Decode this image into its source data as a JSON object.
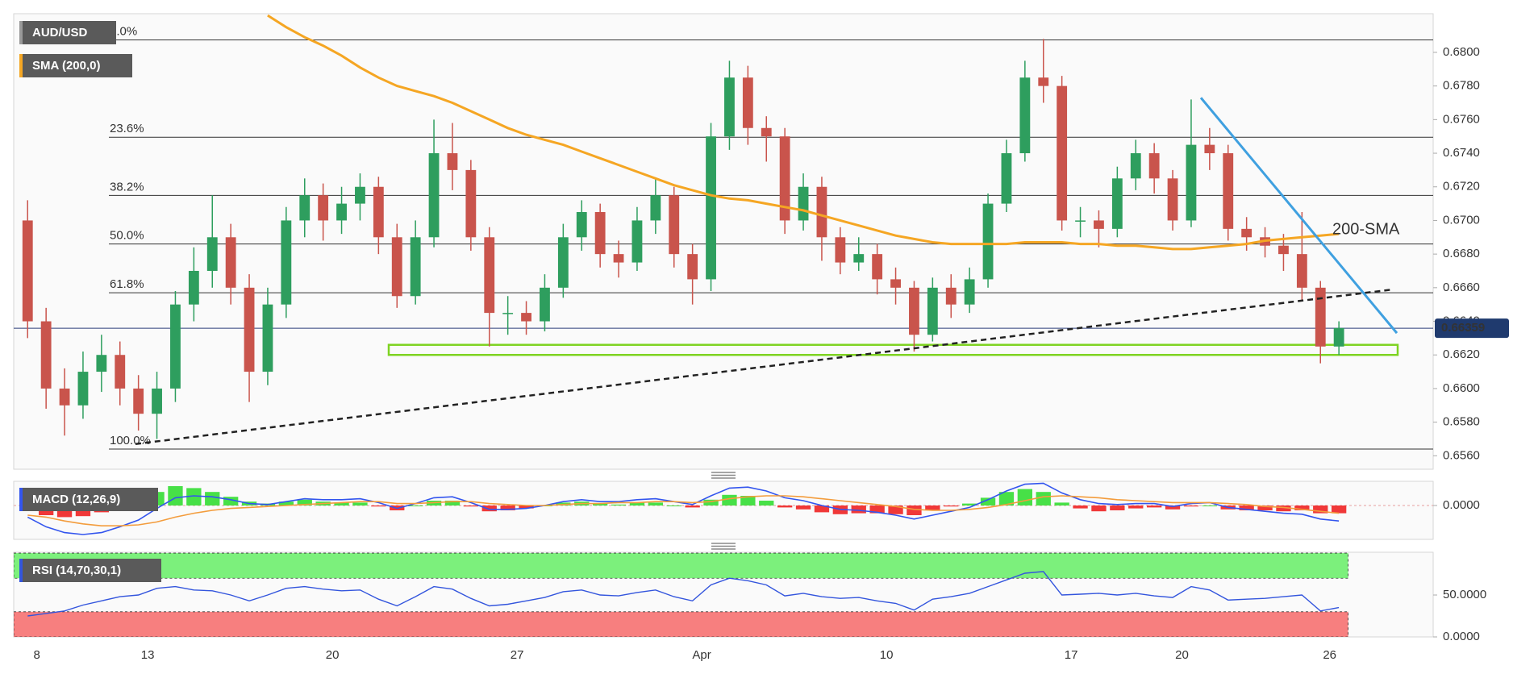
{
  "chart_data": [
    {
      "type": "candlestick",
      "title": "AUD/USD",
      "categories": [
        null,
        "8",
        null,
        null,
        null,
        null,
        null,
        "13",
        null,
        null,
        null,
        null,
        null,
        null,
        null,
        null,
        null,
        "20",
        null,
        null,
        null,
        null,
        null,
        null,
        null,
        null,
        null,
        "27",
        null,
        null,
        null,
        null,
        null,
        null,
        null,
        null,
        null,
        "Apr",
        null,
        null,
        null,
        null,
        null,
        null,
        null,
        null,
        null,
        "10",
        null,
        null,
        null,
        null,
        null,
        null,
        null,
        null,
        null,
        "17",
        null,
        null,
        null,
        null,
        null,
        "20",
        null,
        null,
        null,
        null,
        null,
        null,
        null,
        "26"
      ],
      "open": [
        0.67,
        0.664,
        0.66,
        0.659,
        0.661,
        0.662,
        0.66,
        0.6585,
        0.66,
        0.665,
        0.667,
        0.669,
        0.666,
        0.661,
        0.665,
        0.67,
        0.6715,
        0.67,
        0.671,
        0.672,
        0.669,
        0.6655,
        0.669,
        0.674,
        0.673,
        0.669,
        0.6645,
        0.6645,
        0.664,
        0.666,
        0.669,
        0.6705,
        0.668,
        0.6675,
        0.67,
        0.6715,
        0.668,
        0.6665,
        0.675,
        0.6785,
        0.6755,
        0.675,
        0.67,
        0.672,
        0.669,
        0.6675,
        0.668,
        0.6665,
        0.666,
        0.6632,
        0.666,
        0.665,
        0.6665,
        0.671,
        0.674,
        0.6785,
        0.678,
        0.67,
        0.67,
        0.6695,
        0.6725,
        0.674,
        0.6725,
        0.67,
        0.6745,
        0.674,
        0.6695,
        0.669,
        0.6685,
        0.668,
        0.666,
        0.6625
      ],
      "high": [
        0.6712,
        0.6648,
        0.6612,
        0.6622,
        0.6632,
        0.6628,
        0.6608,
        0.661,
        0.6658,
        0.6684,
        0.6715,
        0.6698,
        0.6668,
        0.666,
        0.6708,
        0.6725,
        0.6722,
        0.672,
        0.6728,
        0.6726,
        0.6698,
        0.67,
        0.676,
        0.6758,
        0.6736,
        0.6696,
        0.6655,
        0.6652,
        0.6668,
        0.6698,
        0.6712,
        0.671,
        0.6688,
        0.6708,
        0.6725,
        0.672,
        0.6686,
        0.6758,
        0.6795,
        0.6792,
        0.6762,
        0.6755,
        0.6728,
        0.6726,
        0.6696,
        0.669,
        0.6686,
        0.6672,
        0.6664,
        0.6666,
        0.6668,
        0.6672,
        0.6716,
        0.6748,
        0.6795,
        0.6808,
        0.6786,
        0.6708,
        0.6706,
        0.6732,
        0.6748,
        0.6746,
        0.673,
        0.6772,
        0.6755,
        0.6745,
        0.6702,
        0.6696,
        0.6692,
        0.6705,
        0.6664,
        0.664
      ],
      "low": [
        0.663,
        0.6588,
        0.6572,
        0.6582,
        0.6598,
        0.659,
        0.6575,
        0.657,
        0.6592,
        0.664,
        0.666,
        0.665,
        0.6592,
        0.6602,
        0.6642,
        0.669,
        0.6688,
        0.6692,
        0.67,
        0.668,
        0.6648,
        0.665,
        0.6684,
        0.6718,
        0.6682,
        0.6625,
        0.6632,
        0.6632,
        0.6634,
        0.6654,
        0.6682,
        0.6672,
        0.6666,
        0.667,
        0.6692,
        0.6672,
        0.665,
        0.6658,
        0.6742,
        0.6745,
        0.6735,
        0.6692,
        0.6694,
        0.6676,
        0.6668,
        0.667,
        0.6656,
        0.665,
        0.6622,
        0.6628,
        0.6642,
        0.6645,
        0.666,
        0.6705,
        0.6735,
        0.677,
        0.6694,
        0.669,
        0.6684,
        0.669,
        0.6718,
        0.6716,
        0.6694,
        0.6696,
        0.673,
        0.6688,
        0.6682,
        0.6678,
        0.667,
        0.6652,
        0.6615,
        0.662
      ],
      "close": [
        0.664,
        0.66,
        0.659,
        0.661,
        0.662,
        0.66,
        0.6585,
        0.66,
        0.665,
        0.667,
        0.669,
        0.666,
        0.661,
        0.665,
        0.67,
        0.6715,
        0.67,
        0.671,
        0.672,
        0.669,
        0.6655,
        0.669,
        0.674,
        0.673,
        0.669,
        0.6645,
        0.6645,
        0.664,
        0.666,
        0.669,
        0.6705,
        0.668,
        0.6675,
        0.67,
        0.6715,
        0.668,
        0.6665,
        0.675,
        0.6785,
        0.6755,
        0.675,
        0.67,
        0.672,
        0.669,
        0.6675,
        0.668,
        0.6665,
        0.666,
        0.6632,
        0.666,
        0.665,
        0.6665,
        0.671,
        0.674,
        0.6785,
        0.678,
        0.67,
        0.67,
        0.6695,
        0.6725,
        0.674,
        0.6725,
        0.67,
        0.6745,
        0.674,
        0.6695,
        0.669,
        0.6685,
        0.668,
        0.666,
        0.6625,
        0.6636
      ],
      "up_color": "#2e9e5e",
      "down_color": "#c9544c",
      "series": [
        {
          "name": "SMA (200,0)",
          "color": "#f5a623",
          "values": [
            null,
            null,
            null,
            null,
            null,
            null,
            null,
            null,
            null,
            null,
            null,
            null,
            null,
            0.6822,
            0.6815,
            0.6809,
            0.6804,
            0.6798,
            0.6791,
            0.6785,
            0.678,
            0.6777,
            0.6774,
            0.677,
            0.6765,
            0.676,
            0.6755,
            0.6751,
            0.6748,
            0.6745,
            0.6741,
            0.6737,
            0.6733,
            0.6729,
            0.6725,
            0.6721,
            0.6718,
            0.6715,
            0.6713,
            0.6712,
            0.671,
            0.6708,
            0.6706,
            0.6703,
            0.67,
            0.6697,
            0.6694,
            0.6691,
            0.6689,
            0.6687,
            0.6686,
            0.6686,
            0.6686,
            0.6686,
            0.6687,
            0.6687,
            0.6687,
            0.6686,
            0.6686,
            0.6685,
            0.6685,
            0.6684,
            0.6683,
            0.6683,
            0.6684,
            0.6685,
            0.6686,
            0.6688,
            0.6689,
            0.669,
            0.6691,
            0.6692
          ]
        }
      ],
      "ylim": [
        0.6552,
        0.6823
      ],
      "yticks": [
        {
          "value": 0.656,
          "label": "0.6560"
        },
        {
          "value": 0.658,
          "label": "0.6580"
        },
        {
          "value": 0.66,
          "label": "0.6600"
        },
        {
          "value": 0.662,
          "label": "0.6620"
        },
        {
          "value": 0.664,
          "label": "0.6640"
        },
        {
          "value": 0.666,
          "label": "0.6660"
        },
        {
          "value": 0.668,
          "label": "0.6680"
        },
        {
          "value": 0.67,
          "label": "0.6700"
        },
        {
          "value": 0.672,
          "label": "0.6720"
        },
        {
          "value": 0.674,
          "label": "0.6740"
        },
        {
          "value": 0.676,
          "label": "0.6760"
        },
        {
          "value": 0.678,
          "label": "0.6780"
        },
        {
          "value": 0.68,
          "label": "0.6800"
        }
      ],
      "last_price": 0.66359,
      "fib_levels": [
        {
          "label": "0.0%",
          "price": 0.68074
        },
        {
          "label": "23.6%",
          "price": 0.67495
        },
        {
          "label": "38.2%",
          "price": 0.67149
        },
        {
          "label": "50.0%",
          "price": 0.6686
        },
        {
          "label": "61.8%",
          "price": 0.6657
        },
        {
          "label": "100.0%",
          "price": 0.6564
        }
      ],
      "support_zone": [
        0.662,
        0.6626
      ],
      "support_color": "#7ed321",
      "trendlines": [
        {
          "color": "#222222",
          "dashed": true,
          "from": 0.6567,
          "to": 0.6659
        },
        {
          "color": "#3fa0e0",
          "dashed": false,
          "from": 0.6773,
          "to": 0.6633
        }
      ],
      "annotation": {
        "text": "200-SMA",
        "color": "#f5a623"
      }
    },
    {
      "type": "macd",
      "title": "MACD (12,26,9)",
      "series": [
        {
          "color": "#3355ee",
          "values": [
            -0.0012,
            -0.0022,
            -0.0028,
            -0.003,
            -0.0028,
            -0.0022,
            -0.0015,
            -0.0003,
            0.0008,
            0.001,
            0.0009,
            0.0006,
            0.0002,
            0.0001,
            0.0004,
            0.0007,
            0.0006,
            0.0006,
            0.0007,
            0.0003,
            -0.0003,
            0.0002,
            0.0008,
            0.0009,
            0.0003,
            -0.0004,
            -0.0004,
            -0.0003,
            0.0,
            0.0004,
            0.0006,
            0.0004,
            0.0004,
            0.0006,
            0.0007,
            0.0004,
            0.0001,
            0.001,
            0.0018,
            0.0019,
            0.0015,
            0.0008,
            0.0005,
            0.0,
            -0.0004,
            -0.0005,
            -0.0007,
            -0.001,
            -0.0014,
            -0.001,
            -0.0006,
            -0.0002,
            0.0006,
            0.0015,
            0.0022,
            0.0023,
            0.0013,
            0.0006,
            0.0002,
            0.0001,
            0.0002,
            0.0002,
            -0.0001,
            0.0002,
            0.0003,
            -0.0002,
            -0.0004,
            -0.0006,
            -0.0008,
            -0.0009,
            -0.0014,
            -0.0016
          ]
        },
        {
          "color": "#f39c3c",
          "values": [
            -0.001,
            -0.0012,
            -0.0016,
            -0.0019,
            -0.0021,
            -0.0021,
            -0.002,
            -0.0017,
            -0.0012,
            -0.0008,
            -0.0005,
            -0.0003,
            -0.0002,
            -0.0001,
            0.0,
            0.0001,
            0.0002,
            0.0003,
            0.0004,
            0.0004,
            0.0002,
            0.0002,
            0.0003,
            0.0004,
            0.0004,
            0.0002,
            0.0001,
            0.0,
            0.0,
            0.0001,
            0.0002,
            0.0002,
            0.0003,
            0.0003,
            0.0004,
            0.0004,
            0.0003,
            0.0004,
            0.0007,
            0.0009,
            0.001,
            0.001,
            0.0009,
            0.0007,
            0.0005,
            0.0003,
            0.0001,
            -0.0001,
            -0.0004,
            -0.0005,
            -0.0005,
            -0.0004,
            -0.0002,
            0.0001,
            0.0005,
            0.0009,
            0.001,
            0.0009,
            0.0008,
            0.0006,
            0.0005,
            0.0004,
            0.0003,
            0.0003,
            0.0003,
            0.0002,
            0.0001,
            -0.0001,
            -0.0002,
            -0.0004,
            -0.0006,
            -0.0008
          ]
        }
      ],
      "histogram": [
        -0.0002,
        -0.001,
        -0.0012,
        -0.0011,
        -0.0007,
        -0.0001,
        0.0005,
        0.0014,
        0.002,
        0.0018,
        0.0014,
        0.0009,
        0.0004,
        0.0002,
        0.0004,
        0.0006,
        0.0004,
        0.0003,
        0.0003,
        -0.0001,
        -0.0005,
        0.0,
        0.0005,
        0.0005,
        -0.0001,
        -0.0006,
        -0.0005,
        -0.0003,
        0.0,
        0.0003,
        0.0004,
        0.0002,
        0.0001,
        0.0003,
        0.0003,
        0.0,
        -0.0002,
        0.0006,
        0.0011,
        0.001,
        0.0005,
        -0.0002,
        -0.0004,
        -0.0007,
        -0.0009,
        -0.0008,
        -0.0008,
        -0.0009,
        -0.001,
        -0.0005,
        -0.0001,
        0.0002,
        0.0008,
        0.0014,
        0.0017,
        0.0014,
        0.0003,
        -0.0003,
        -0.0006,
        -0.0005,
        -0.0003,
        -0.0002,
        -0.0004,
        -0.0001,
        0.0,
        -0.0004,
        -0.0005,
        -0.0005,
        -0.0006,
        -0.0005,
        -0.0008,
        -0.0008
      ],
      "up_color": "#33dd33",
      "down_color": "#ee2222",
      "ylim": [
        -0.0035,
        0.0025
      ],
      "yticks": [
        {
          "value": 0,
          "label": "0.0000"
        }
      ]
    },
    {
      "type": "line",
      "title": "RSI (14,70,30,1)",
      "series": [
        {
          "color": "#3355dd",
          "values": [
            25,
            28,
            31,
            38,
            43,
            48,
            50,
            58,
            60,
            56,
            55,
            50,
            43,
            50,
            58,
            60,
            57,
            55,
            56,
            45,
            37,
            48,
            60,
            57,
            46,
            37,
            39,
            43,
            47,
            54,
            56,
            50,
            49,
            53,
            56,
            48,
            43,
            62,
            70,
            67,
            62,
            49,
            52,
            48,
            46,
            47,
            43,
            40,
            32,
            45,
            48,
            52,
            60,
            68,
            76,
            78,
            50,
            51,
            52,
            50,
            52,
            49,
            47,
            60,
            56,
            44,
            45,
            46,
            48,
            50,
            31,
            35
          ]
        }
      ],
      "bands": [
        {
          "range": [
            70,
            100
          ],
          "color": "#7cf07c"
        },
        {
          "range": [
            0,
            30
          ],
          "color": "#f77f7f"
        }
      ],
      "ylim": [
        0,
        101
      ],
      "yticks": [
        {
          "value": 0,
          "label": "0.0000"
        },
        {
          "value": 50,
          "label": "50.0000"
        }
      ]
    }
  ]
}
